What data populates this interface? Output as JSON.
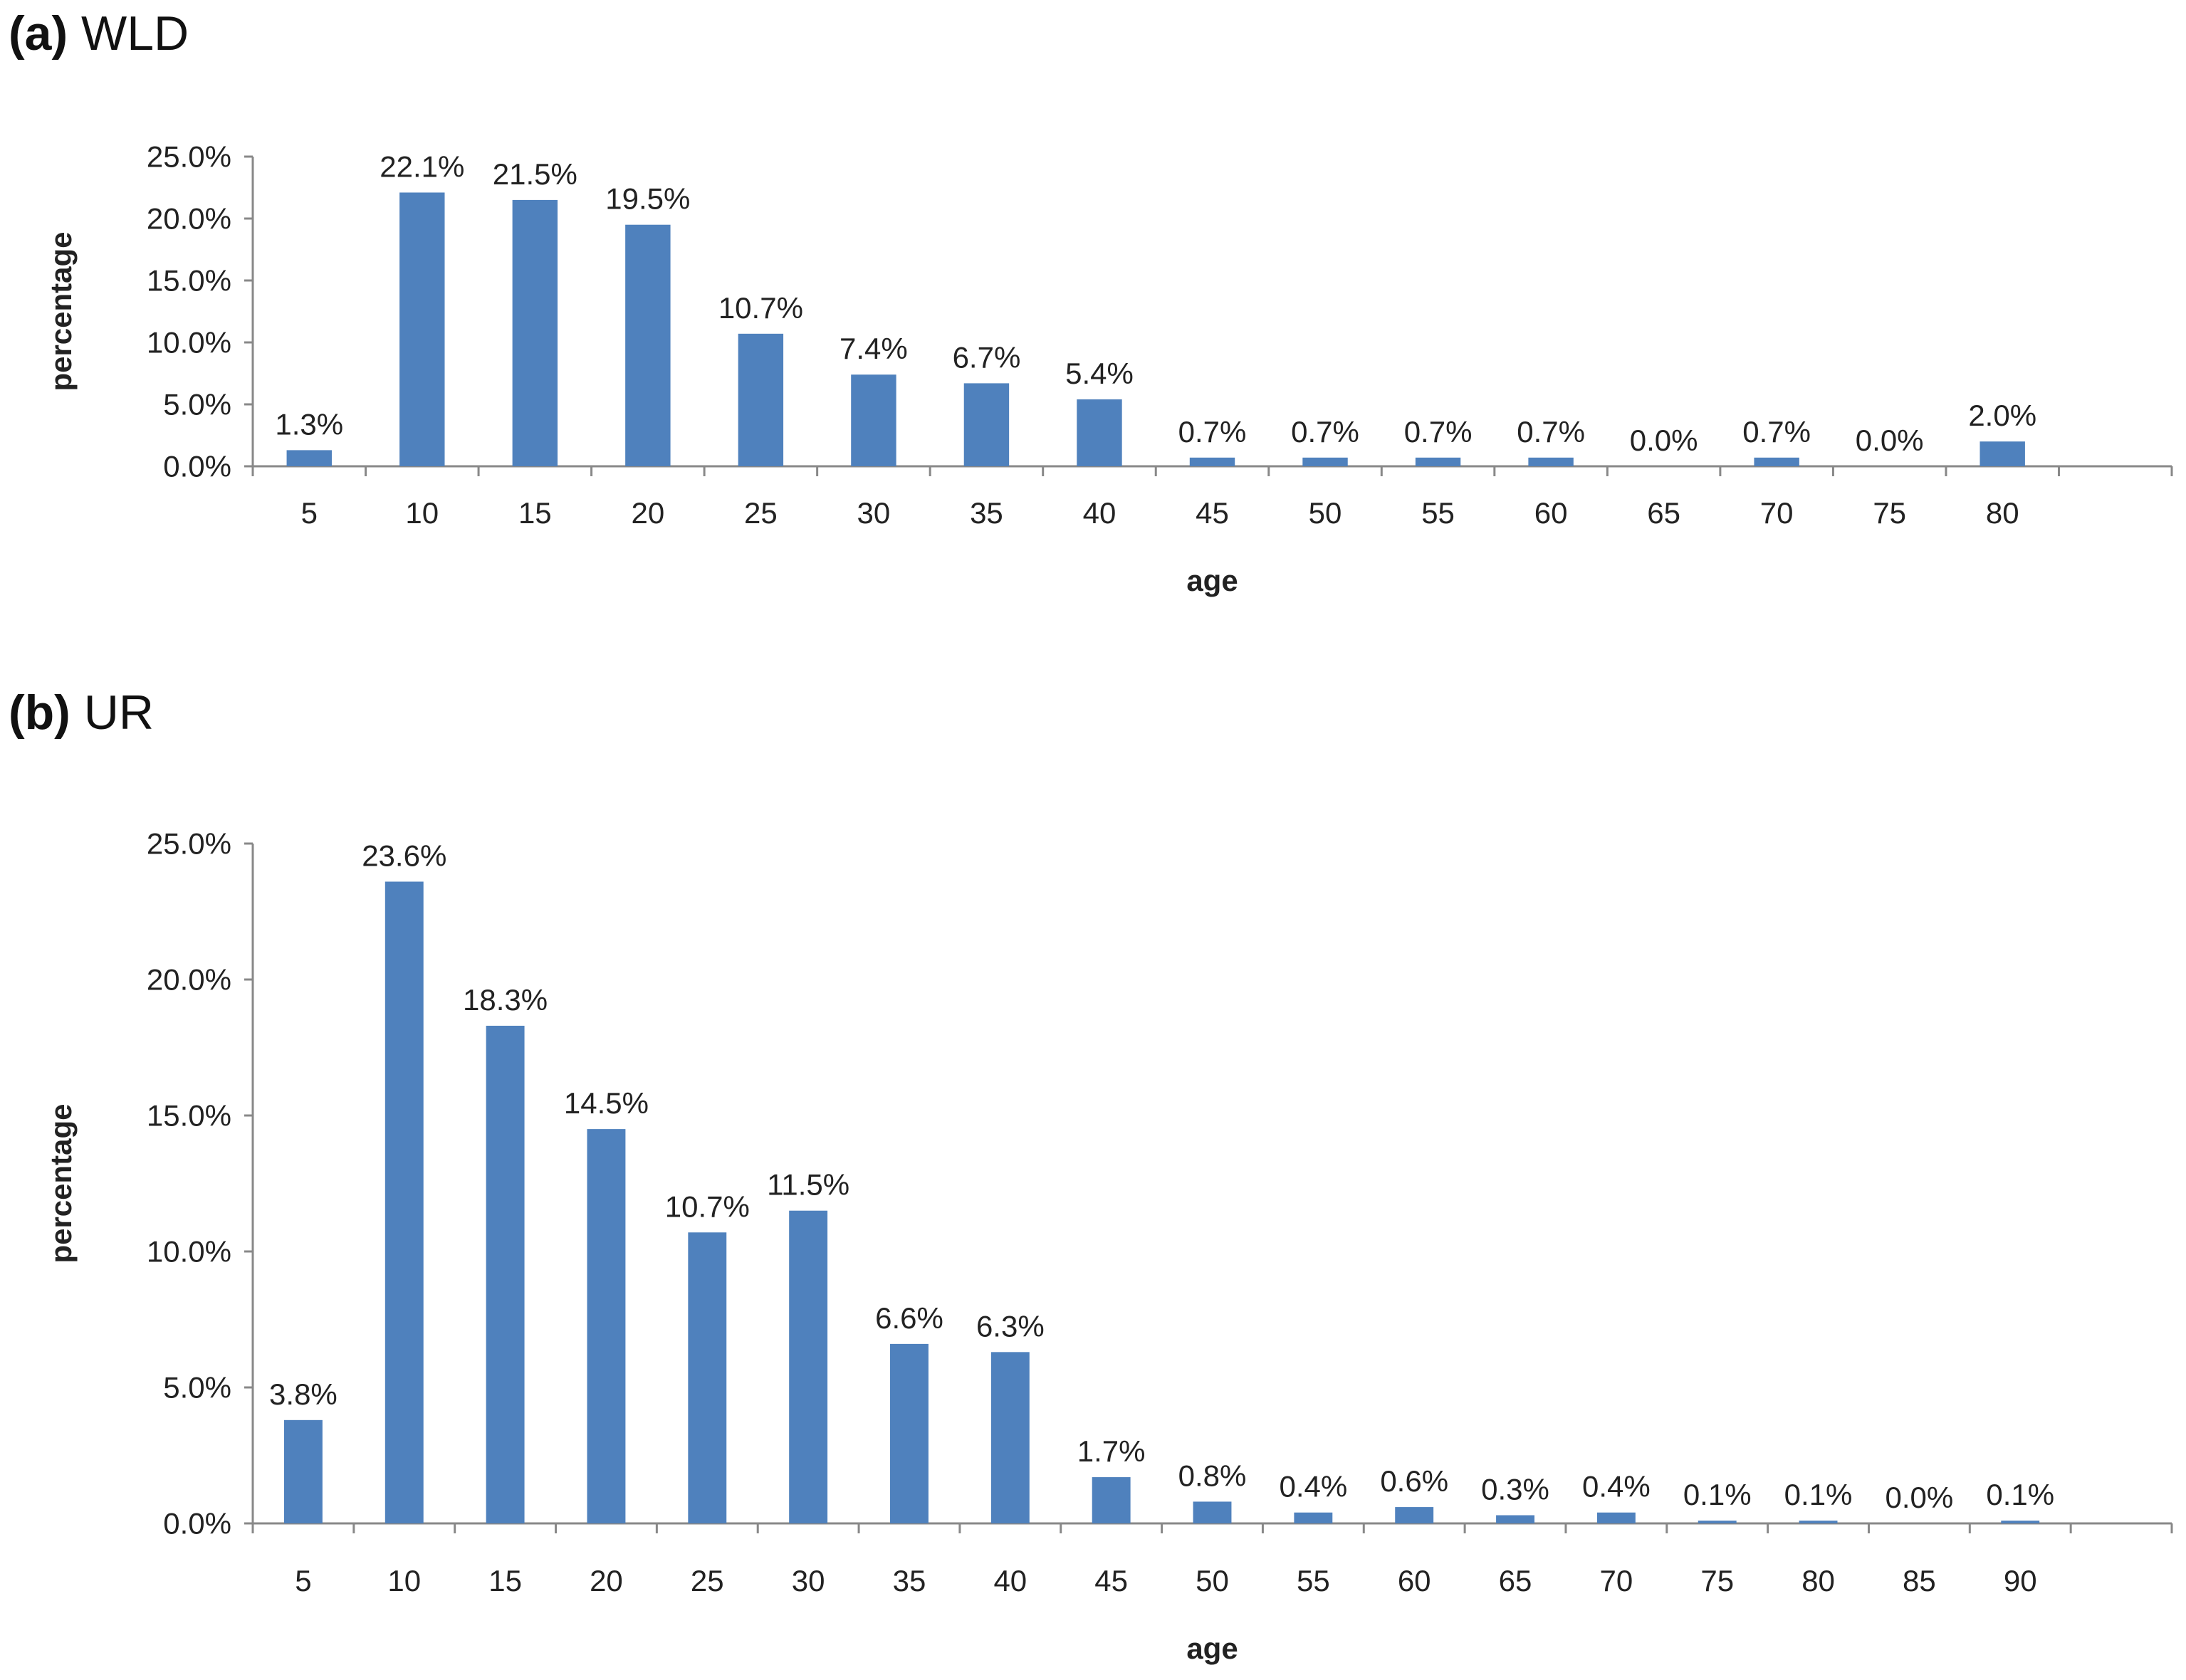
{
  "panels": [
    {
      "letter": "(a)",
      "name": "WLD"
    },
    {
      "letter": "(b)",
      "name": "UR"
    }
  ],
  "chart_data": [
    {
      "type": "bar",
      "xlabel": "age",
      "ylabel": "percentage",
      "categories": [
        "5",
        "10",
        "15",
        "20",
        "25",
        "30",
        "35",
        "40",
        "45",
        "50",
        "55",
        "60",
        "65",
        "70",
        "75",
        "80"
      ],
      "values": [
        1.3,
        22.1,
        21.5,
        19.5,
        10.7,
        7.4,
        6.7,
        5.4,
        0.7,
        0.7,
        0.7,
        0.7,
        0.0,
        0.7,
        0.0,
        2.0
      ],
      "value_labels": [
        "1.3%",
        "22.1%",
        "21.5%",
        "19.5%",
        "10.7%",
        "7.4%",
        "6.7%",
        "5.4%",
        "0.7%",
        "0.7%",
        "0.7%",
        "0.7%",
        "0.0%",
        "0.7%",
        "0.0%",
        "2.0%"
      ],
      "yticks": [
        "0.0%",
        "5.0%",
        "10.0%",
        "15.0%",
        "20.0%",
        "25.0%"
      ],
      "ylim": [
        0,
        25
      ],
      "extra_slots": 1,
      "bar_color": "#4f81bd"
    },
    {
      "type": "bar",
      "xlabel": "age",
      "ylabel": "percentage",
      "categories": [
        "5",
        "10",
        "15",
        "20",
        "25",
        "30",
        "35",
        "40",
        "45",
        "50",
        "55",
        "60",
        "65",
        "70",
        "75",
        "80",
        "85",
        "90"
      ],
      "values": [
        3.8,
        23.6,
        18.3,
        14.5,
        10.7,
        11.5,
        6.6,
        6.3,
        1.7,
        0.8,
        0.4,
        0.6,
        0.3,
        0.4,
        0.1,
        0.1,
        0.0,
        0.1
      ],
      "value_labels": [
        "3.8%",
        "23.6%",
        "18.3%",
        "14.5%",
        "10.7%",
        "11.5%",
        "6.6%",
        "6.3%",
        "1.7%",
        "0.8%",
        "0.4%",
        "0.6%",
        "0.3%",
        "0.4%",
        "0.1%",
        "0.1%",
        "0.0%",
        "0.1%"
      ],
      "yticks": [
        "0.0%",
        "5.0%",
        "10.0%",
        "15.0%",
        "20.0%",
        "25.0%"
      ],
      "ylim": [
        0,
        25
      ],
      "extra_slots": 1,
      "bar_color": "#4f81bd"
    }
  ]
}
